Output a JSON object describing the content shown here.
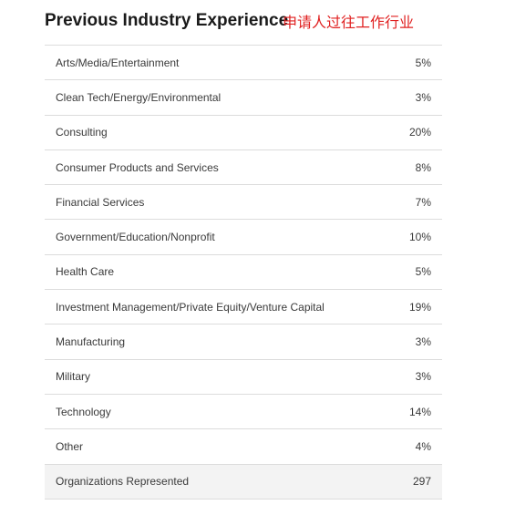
{
  "header": {
    "title": "Previous Industry Experience",
    "annotation": "申请人过往工作行业"
  },
  "table": {
    "rows": [
      {
        "label": "Arts/Media/Entertainment",
        "value": "5%"
      },
      {
        "label": "Clean Tech/Energy/Environmental",
        "value": "3%"
      },
      {
        "label": "Consulting",
        "value": "20%"
      },
      {
        "label": "Consumer Products and Services",
        "value": "8%"
      },
      {
        "label": "Financial Services",
        "value": "7%"
      },
      {
        "label": "Government/Education/Nonprofit",
        "value": "10%"
      },
      {
        "label": "Health Care",
        "value": "5%"
      },
      {
        "label": "Investment Management/Private Equity/Venture Capital",
        "value": "19%"
      },
      {
        "label": "Manufacturing",
        "value": "3%"
      },
      {
        "label": "Military",
        "value": "3%"
      },
      {
        "label": "Technology",
        "value": "14%"
      },
      {
        "label": "Other",
        "value": "4%"
      }
    ],
    "total": {
      "label": "Organizations Represented",
      "value": "297"
    }
  },
  "colors": {
    "annotation": "#e02020",
    "total_row_bg": "#f3f3f3",
    "divider": "#dcdcdc"
  }
}
